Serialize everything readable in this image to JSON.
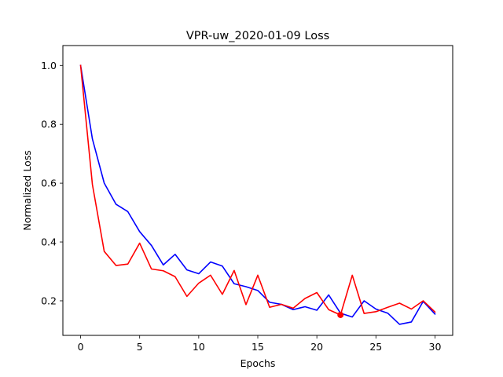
{
  "chart_data": {
    "type": "line",
    "title": "VPR-uw_2020-01-09 Loss",
    "xlabel": "Epochs",
    "ylabel": "Normalized Loss",
    "xlim": [
      -1.5,
      31.5
    ],
    "ylim": [
      0.0825,
      1.0675
    ],
    "x_ticks": [
      0,
      5,
      10,
      15,
      20,
      25,
      30
    ],
    "y_ticks": [
      0.2,
      0.4,
      0.6,
      0.8,
      1.0
    ],
    "x_tick_labels": [
      "0",
      "5",
      "10",
      "15",
      "20",
      "25",
      "30"
    ],
    "y_tick_labels": [
      "0.2",
      "0.4",
      "0.6",
      "0.8",
      "1.0"
    ],
    "grid": false,
    "x": [
      0,
      1,
      2,
      3,
      4,
      5,
      6,
      7,
      8,
      9,
      10,
      11,
      12,
      13,
      14,
      15,
      16,
      17,
      18,
      19,
      20,
      21,
      22,
      23,
      24,
      25,
      26,
      27,
      28,
      29,
      30
    ],
    "series": [
      {
        "color": "#0000ff",
        "values": [
          1.0,
          0.75,
          0.6,
          0.528,
          0.503,
          0.435,
          0.388,
          0.322,
          0.358,
          0.305,
          0.292,
          0.332,
          0.318,
          0.258,
          0.248,
          0.235,
          0.195,
          0.188,
          0.17,
          0.18,
          0.168,
          0.22,
          0.158,
          0.145,
          0.2,
          0.172,
          0.158,
          0.12,
          0.128,
          0.198,
          0.155
        ]
      },
      {
        "color": "#ff0000",
        "values": [
          1.0,
          0.595,
          0.368,
          0.32,
          0.325,
          0.396,
          0.308,
          0.302,
          0.282,
          0.215,
          0.26,
          0.287,
          0.222,
          0.303,
          0.187,
          0.287,
          0.178,
          0.188,
          0.175,
          0.208,
          0.228,
          0.17,
          0.152,
          0.287,
          0.157,
          0.163,
          0.178,
          0.192,
          0.172,
          0.2,
          0.162
        ]
      }
    ],
    "marker": {
      "x": 22,
      "y": 0.152,
      "color": "#ff0000"
    }
  }
}
